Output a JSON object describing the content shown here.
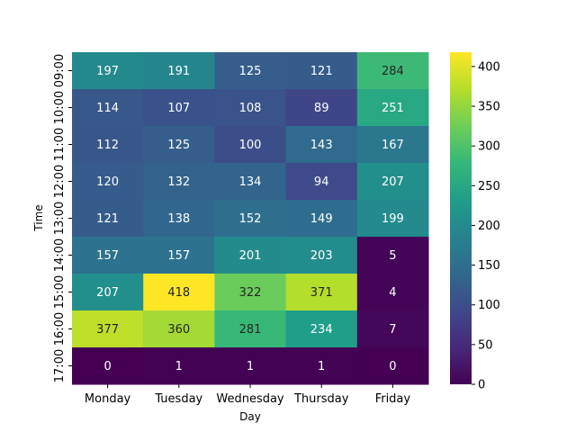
{
  "chart_data": {
    "type": "heatmap",
    "title": "",
    "xlabel": "Day",
    "ylabel": "Time",
    "x_categories": [
      "Monday",
      "Tuesday",
      "Wednesday",
      "Thursday",
      "Friday"
    ],
    "y_categories": [
      "09:00",
      "10:00",
      "11:00",
      "12:00",
      "13:00",
      "14:00",
      "15:00",
      "16:00",
      "17:00"
    ],
    "values": [
      [
        197,
        191,
        125,
        121,
        284
      ],
      [
        114,
        107,
        108,
        89,
        251
      ],
      [
        112,
        125,
        100,
        143,
        167
      ],
      [
        120,
        132,
        134,
        94,
        207
      ],
      [
        121,
        138,
        152,
        149,
        199
      ],
      [
        157,
        157,
        201,
        203,
        5
      ],
      [
        207,
        418,
        322,
        371,
        4
      ],
      [
        377,
        360,
        281,
        234,
        7
      ],
      [
        0,
        1,
        1,
        1,
        0
      ]
    ],
    "colormap": "viridis",
    "colorbar": {
      "min": 0,
      "max": 418,
      "ticks": [
        0,
        50,
        100,
        150,
        200,
        250,
        300,
        350,
        400
      ]
    },
    "annotations": true,
    "grid": false
  }
}
